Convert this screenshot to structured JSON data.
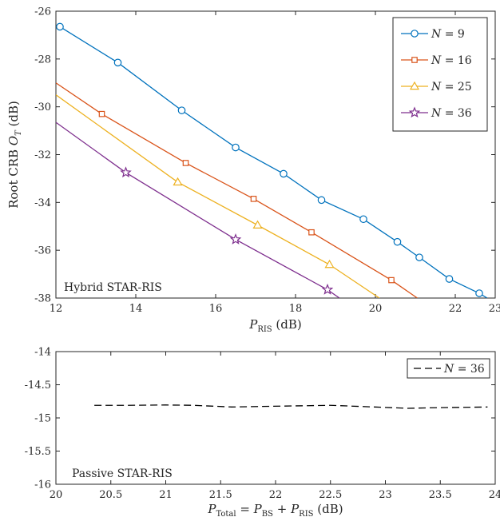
{
  "chart_data": [
    {
      "type": "line",
      "title": "",
      "xlabel": "P_RIS (dB)",
      "xlabel_main": "P",
      "xlabel_sub": "RIS",
      "xlabel_unit": " (dB)",
      "ylabel": "Root CRB O_T (dB)",
      "ylabel_main": "Root CRB ",
      "ylabel_var": "O",
      "ylabel_sub": "T",
      "ylabel_unit": " (dB)",
      "xlim": [
        12,
        23
      ],
      "ylim": [
        -38,
        -26
      ],
      "xticks": [
        12,
        14,
        16,
        18,
        20,
        22,
        23
      ],
      "yticks": [
        -38,
        -36,
        -34,
        -32,
        -30,
        -28,
        -26
      ],
      "grid": false,
      "legend_position": "top-right",
      "annotation": "Hybrid STAR-RIS",
      "series": [
        {
          "name": "N = 9",
          "color": "#0072BD",
          "marker": "circle",
          "x": [
            12.1,
            13.55,
            15.15,
            16.5,
            17.7,
            18.65,
            19.7,
            20.55,
            21.1,
            21.85,
            22.6,
            22.8
          ],
          "y": [
            -26.65,
            -28.15,
            -30.15,
            -31.7,
            -32.8,
            -33.9,
            -34.7,
            -35.65,
            -36.3,
            -37.2,
            -37.8,
            -38.0
          ]
        },
        {
          "name": "N = 16",
          "color": "#D95319",
          "marker": "square",
          "x": [
            12.0,
            13.15,
            15.25,
            16.95,
            18.4,
            20.4,
            21.05
          ],
          "y": [
            -29.0,
            -30.3,
            -32.35,
            -33.85,
            -35.25,
            -37.25,
            -38.0
          ]
        },
        {
          "name": "N = 25",
          "color": "#EDB120",
          "marker": "triangle",
          "x": [
            12.0,
            15.05,
            17.05,
            18.85,
            20.1
          ],
          "y": [
            -29.5,
            -33.15,
            -34.95,
            -36.6,
            -38.0
          ]
        },
        {
          "name": "N = 36",
          "color": "#7E2F8E",
          "marker": "star",
          "x": [
            12.0,
            13.75,
            16.5,
            18.8,
            19.1
          ],
          "y": [
            -30.65,
            -32.75,
            -35.55,
            -37.65,
            -38.0
          ]
        }
      ]
    },
    {
      "type": "line",
      "title": "",
      "xlabel": "P_Total = P_BS + P_RIS (dB)",
      "xlabel_parts": [
        "P",
        "Total",
        " = ",
        "P",
        "BS",
        " + ",
        "P",
        "RIS",
        " (dB)"
      ],
      "ylabel": "",
      "xlim": [
        20,
        24
      ],
      "ylim": [
        -16,
        -14
      ],
      "xticks": [
        "20",
        "20.5",
        "21",
        "21.5",
        "22",
        "22.5",
        "23",
        "23.5",
        "24"
      ],
      "yticks": [
        "-16",
        "-15.5",
        "-15",
        "-14.5",
        "-14"
      ],
      "grid": false,
      "legend_position": "top-right",
      "annotation": "Passive STAR-RIS",
      "series": [
        {
          "name": "N = 36",
          "color": "#000000",
          "style": "dashed",
          "x": [
            20.35,
            20.65,
            21.0,
            21.25,
            21.6,
            21.95,
            22.5,
            22.9,
            23.2,
            23.5,
            23.93
          ],
          "y": [
            -14.81,
            -14.81,
            -14.805,
            -14.81,
            -14.835,
            -14.825,
            -14.81,
            -14.835,
            -14.855,
            -14.845,
            -14.835
          ]
        }
      ]
    }
  ]
}
